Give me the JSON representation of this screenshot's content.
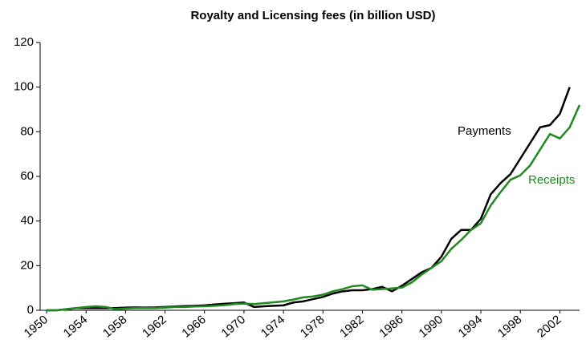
{
  "chart_data": {
    "type": "line",
    "title": "Royalty and Licensing fees (in billion USD)",
    "x": [
      1950,
      1951,
      1952,
      1953,
      1954,
      1955,
      1956,
      1957,
      1958,
      1959,
      1960,
      1961,
      1962,
      1963,
      1964,
      1965,
      1966,
      1967,
      1968,
      1969,
      1970,
      1971,
      1972,
      1973,
      1974,
      1975,
      1976,
      1977,
      1978,
      1979,
      1980,
      1981,
      1982,
      1983,
      1984,
      1985,
      1986,
      1987,
      1988,
      1989,
      1990,
      1991,
      1992,
      1993,
      1994,
      1995,
      1996,
      1997,
      1998,
      1999,
      2000,
      2001,
      2002,
      2003,
      2004
    ],
    "series": [
      {
        "name": "Payments",
        "color": "#000000",
        "values": [
          0,
          0,
          0.5,
          1,
          1,
          1,
          1,
          1,
          1.2,
          1.3,
          1.2,
          1.3,
          1.5,
          1.7,
          1.9,
          2,
          2.2,
          2.6,
          2.9,
          3.2,
          3.5,
          1.5,
          1.8,
          2,
          2.2,
          3.5,
          4,
          5,
          6,
          7.5,
          8.5,
          9,
          9,
          9.5,
          10.5,
          8.5,
          11,
          14,
          17,
          19,
          24,
          32,
          36,
          36,
          41,
          52,
          57,
          61,
          68,
          75,
          82,
          83,
          88,
          100,
          null
        ]
      },
      {
        "name": "Receipts",
        "color": "#1f8a1f",
        "values": [
          0,
          0,
          0.5,
          1,
          1.5,
          1.8,
          1.5,
          0.5,
          0.8,
          1,
          1,
          1,
          1.2,
          1.5,
          1.5,
          1.7,
          1.8,
          2,
          2.3,
          2.8,
          3,
          2.8,
          3.2,
          3.6,
          4,
          4.8,
          5.8,
          6.2,
          7,
          8.5,
          9.5,
          10.8,
          11.2,
          9.2,
          9.5,
          9.8,
          10.2,
          12.5,
          16,
          19,
          22,
          27.5,
          31.5,
          36,
          39,
          47,
          53,
          58.5,
          60.5,
          65,
          72,
          79,
          77,
          82,
          92
        ]
      }
    ],
    "xlim": [
      1950,
      2004
    ],
    "xticks": [
      1950,
      1954,
      1958,
      1962,
      1966,
      1970,
      1974,
      1978,
      1982,
      1986,
      1990,
      1994,
      1998,
      2002
    ],
    "ylim": [
      0,
      120
    ],
    "yticks": [
      0,
      20,
      40,
      60,
      80,
      100,
      120
    ],
    "grid": false
  }
}
